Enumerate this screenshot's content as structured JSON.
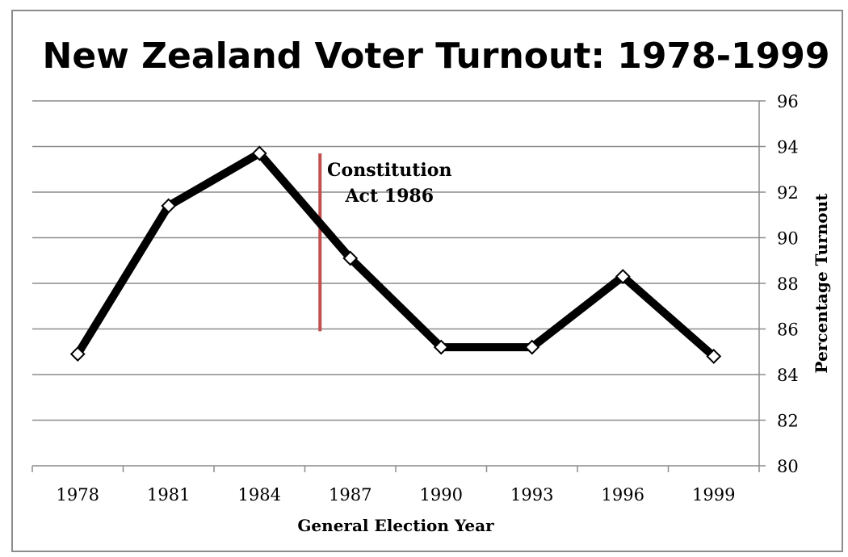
{
  "chart_data": {
    "type": "line",
    "title": "New Zealand Voter Turnout: 1978-1999",
    "xlabel": "General Election Year",
    "ylabel": "Percentage Turnout",
    "categories": [
      "1978",
      "1981",
      "1984",
      "1987",
      "1990",
      "1993",
      "1996",
      "1999"
    ],
    "series": [
      {
        "x": [
          "1978",
          "1981",
          "1984",
          "1987",
          "1990",
          "1993",
          "1996",
          "1999"
        ],
        "values": [
          84.9,
          91.4,
          93.7,
          89.1,
          85.2,
          85.2,
          88.3,
          84.8
        ]
      }
    ],
    "ylim": [
      80,
      96
    ],
    "yticks": [
      80,
      82,
      84,
      86,
      88,
      90,
      92,
      94,
      96
    ],
    "y_axis_side": "right",
    "grid": true,
    "line_color": "#000000",
    "annotation": {
      "text_lines": [
        "Constitution",
        "Act 1986"
      ],
      "x": 1986,
      "y_range": [
        85.9,
        93.7
      ],
      "color": "#c0504d"
    }
  }
}
